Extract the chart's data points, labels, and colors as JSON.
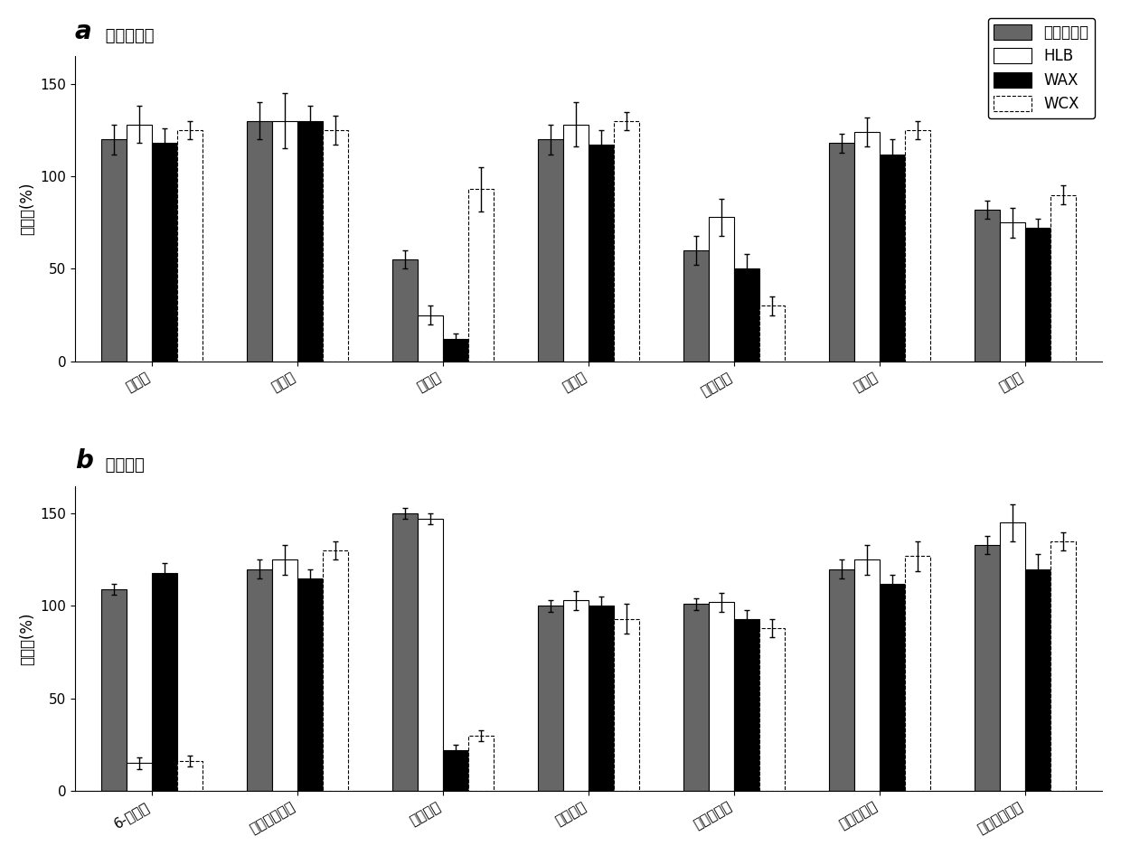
{
  "panel_a": {
    "title_letter": "a",
    "title_text": " 母体化合物",
    "groups": [
      "啶虫脒",
      "噻虫胺",
      "呋虫胺",
      "吡虫啉",
      "烯啶虫胺",
      "噻虫啉",
      "噻虫嗪"
    ],
    "series": {
      "混合吸附剂": {
        "values": [
          120,
          130,
          55,
          120,
          60,
          118,
          82
        ],
        "errors": [
          8,
          10,
          5,
          8,
          8,
          5,
          5
        ]
      },
      "HLB": {
        "values": [
          128,
          130,
          25,
          128,
          78,
          124,
          75
        ],
        "errors": [
          10,
          15,
          5,
          12,
          10,
          8,
          8
        ]
      },
      "WAX": {
        "values": [
          118,
          130,
          12,
          117,
          50,
          112,
          72
        ],
        "errors": [
          8,
          8,
          3,
          8,
          8,
          8,
          5
        ]
      },
      "WCX": {
        "values": [
          125,
          125,
          93,
          130,
          30,
          125,
          90
        ],
        "errors": [
          5,
          8,
          12,
          5,
          5,
          5,
          5
        ]
      }
    },
    "ylabel": "回收率(%)",
    "ylim": [
      0,
      165
    ],
    "yticks": [
      0,
      50,
      100,
      150
    ]
  },
  "panel_b": {
    "title_letter": "b",
    "title_text": " 转化产物",
    "groups": [
      "6-氯烟酸",
      "去甲基啶虫脒",
      "吡虫啉脲",
      "吡虫啉胍",
      "吡虫啉烯烃",
      "氨基噻虫啉",
      "去甲基噻虫嗪"
    ],
    "series": {
      "混合吸附剂": {
        "values": [
          109,
          120,
          150,
          100,
          101,
          120,
          133
        ],
        "errors": [
          3,
          5,
          3,
          3,
          3,
          5,
          5
        ]
      },
      "HLB": {
        "values": [
          15,
          125,
          147,
          103,
          102,
          125,
          145
        ],
        "errors": [
          3,
          8,
          3,
          5,
          5,
          8,
          10
        ]
      },
      "WAX": {
        "values": [
          118,
          115,
          22,
          100,
          93,
          112,
          120
        ],
        "errors": [
          5,
          5,
          3,
          5,
          5,
          5,
          8
        ]
      },
      "WCX": {
        "values": [
          16,
          130,
          30,
          93,
          88,
          127,
          135
        ],
        "errors": [
          3,
          5,
          3,
          8,
          5,
          8,
          5
        ]
      }
    },
    "ylabel": "回收率(%)",
    "ylim": [
      0,
      165
    ],
    "yticks": [
      0,
      50,
      100,
      150
    ]
  },
  "legend_labels": [
    "混合吸附剂",
    "HLB",
    "WAX",
    "WCX"
  ],
  "bar_width": 0.18,
  "figsize": [
    12.4,
    9.46
  ],
  "dpi": 100
}
